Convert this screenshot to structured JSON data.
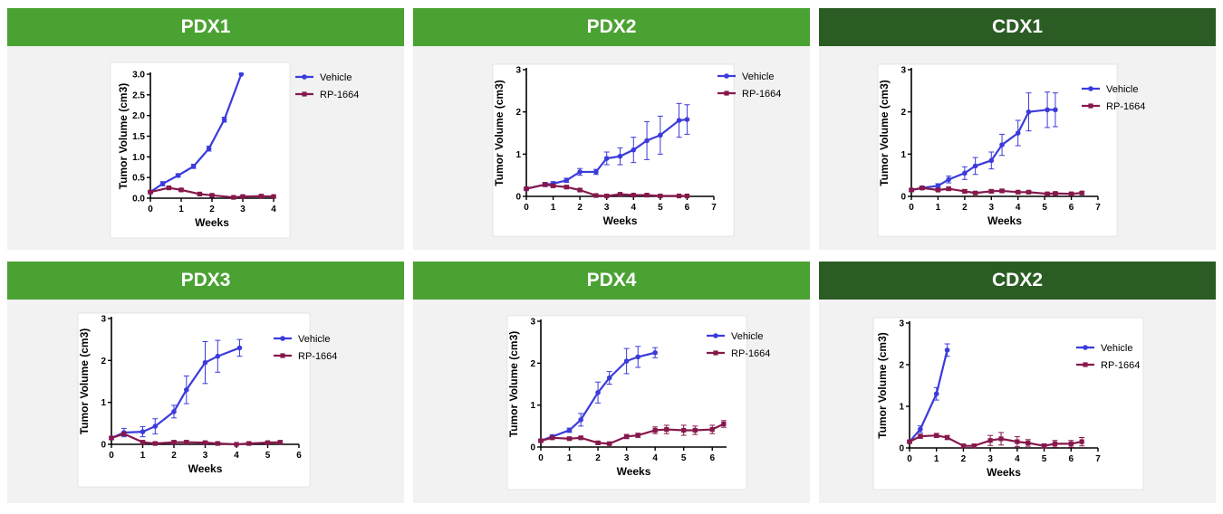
{
  "colors": {
    "header_light": "#4aa232",
    "header_dark": "#2a5c24",
    "vehicle": "#3b3bdc",
    "rp": "#86184c"
  },
  "chart_data": [
    {
      "id": "pdx1",
      "title": "PDX1",
      "type": "line",
      "header": "light",
      "xlabel": "Weeks",
      "ylabel": "Tumor Volume (cm3)",
      "xlim": [
        0,
        4
      ],
      "ylim": [
        0,
        3
      ],
      "xticks": [
        "0",
        "1",
        "2",
        "3",
        "4"
      ],
      "yticks": [
        "0.0",
        "0.5",
        "1.0",
        "1.5",
        "2.0",
        "2.5",
        "3.0"
      ],
      "series": [
        {
          "name": "Vehicle",
          "color": "vehicle",
          "marker": "circle",
          "x": [
            0,
            0.4,
            0.9,
            1.4,
            1.9,
            2.4,
            2.95
          ],
          "y": [
            0.15,
            0.35,
            0.55,
            0.77,
            1.2,
            1.9,
            3.0
          ],
          "err": [
            0.03,
            0.05,
            0.04,
            0.05,
            0.06,
            0.06,
            0
          ]
        },
        {
          "name": "RP-1664",
          "color": "rp",
          "marker": "square",
          "x": [
            0,
            0.6,
            1.0,
            1.6,
            2.0,
            2.7,
            3.0,
            3.6,
            4.0
          ],
          "y": [
            0.15,
            0.25,
            0.2,
            0.1,
            0.07,
            0.02,
            0.04,
            0.05,
            0.04
          ],
          "err": [
            0.02,
            0.03,
            0.03,
            0.02,
            0.02,
            0.02,
            0.02,
            0.02,
            0.02
          ]
        }
      ]
    },
    {
      "id": "pdx2",
      "title": "PDX2",
      "type": "line",
      "header": "light",
      "xlabel": "Weeks",
      "ylabel": "Tumor Volume (cm3)",
      "xlim": [
        0,
        7
      ],
      "ylim": [
        0,
        3
      ],
      "xticks": [
        "0",
        "1",
        "2",
        "3",
        "4",
        "5",
        "6",
        "7"
      ],
      "yticks": [
        "0",
        "1",
        "2",
        "3"
      ],
      "series": [
        {
          "name": "Vehicle",
          "color": "vehicle",
          "marker": "circle",
          "x": [
            0,
            0.7,
            1,
            1.5,
            2,
            2.6,
            3,
            3.5,
            4,
            4.5,
            5,
            5.7,
            6
          ],
          "y": [
            0.18,
            0.28,
            0.3,
            0.38,
            0.58,
            0.58,
            0.9,
            0.95,
            1.1,
            1.32,
            1.45,
            1.8,
            1.82
          ],
          "err": [
            0.03,
            0.05,
            0.05,
            0.05,
            0.08,
            0.06,
            0.15,
            0.2,
            0.3,
            0.45,
            0.45,
            0.4,
            0.35
          ]
        },
        {
          "name": "RP-1664",
          "color": "rp",
          "marker": "square",
          "x": [
            0,
            0.7,
            1,
            1.5,
            2,
            2.6,
            3,
            3.5,
            4,
            4.5,
            5,
            5.7,
            6
          ],
          "y": [
            0.18,
            0.28,
            0.25,
            0.22,
            0.15,
            0.02,
            0.01,
            0.05,
            0.03,
            0.03,
            0.01,
            0.01,
            0.01
          ],
          "err": [
            0.02,
            0.03,
            0.03,
            0.03,
            0.03,
            0.02,
            0.02,
            0.02,
            0.02,
            0.02,
            0.02,
            0.02,
            0.02
          ]
        }
      ]
    },
    {
      "id": "cdx1",
      "title": "CDX1",
      "type": "line",
      "header": "dark",
      "xlabel": "Weeks",
      "ylabel": "Tumor Volume (cm3)",
      "xlim": [
        0,
        7
      ],
      "ylim": [
        0,
        3
      ],
      "xticks": [
        "0",
        "1",
        "2",
        "3",
        "4",
        "5",
        "6",
        "7"
      ],
      "yticks": [
        "0",
        "1",
        "2",
        "3"
      ],
      "series": [
        {
          "name": "Vehicle",
          "color": "vehicle",
          "marker": "circle",
          "x": [
            0,
            0.4,
            1,
            1.4,
            2,
            2.4,
            3,
            3.4,
            4,
            4.4,
            5.1,
            5.4
          ],
          "y": [
            0.15,
            0.2,
            0.25,
            0.4,
            0.55,
            0.72,
            0.85,
            1.22,
            1.5,
            2.0,
            2.05,
            2.05
          ],
          "err": [
            0.03,
            0.04,
            0.05,
            0.08,
            0.15,
            0.2,
            0.2,
            0.25,
            0.3,
            0.45,
            0.42,
            0.4
          ]
        },
        {
          "name": "RP-1664",
          "color": "rp",
          "marker": "square",
          "x": [
            0,
            0.4,
            1,
            1.4,
            2,
            2.4,
            3,
            3.4,
            4,
            4.4,
            5.1,
            5.4,
            6,
            6.4
          ],
          "y": [
            0.15,
            0.2,
            0.15,
            0.18,
            0.12,
            0.08,
            0.12,
            0.13,
            0.1,
            0.1,
            0.06,
            0.07,
            0.06,
            0.08
          ],
          "err": [
            0.03,
            0.03,
            0.03,
            0.04,
            0.04,
            0.03,
            0.04,
            0.04,
            0.03,
            0.03,
            0.03,
            0.03,
            0.03,
            0.03
          ]
        }
      ]
    },
    {
      "id": "pdx3",
      "title": "PDX3",
      "type": "line",
      "header": "light",
      "xlabel": "Weeks",
      "ylabel": "Tumor Volume (cm3)",
      "xlim": [
        0,
        6
      ],
      "ylim": [
        0,
        3
      ],
      "xticks": [
        "0",
        "1",
        "2",
        "3",
        "4",
        "5",
        "6"
      ],
      "yticks": [
        "0",
        "1",
        "2",
        "3"
      ],
      "series": [
        {
          "name": "Vehicle",
          "color": "vehicle",
          "marker": "circle",
          "x": [
            0,
            0.4,
            1,
            1.4,
            2,
            2.4,
            3,
            3.4,
            4.1
          ],
          "y": [
            0.15,
            0.28,
            0.3,
            0.43,
            0.78,
            1.3,
            1.95,
            2.1,
            2.3
          ],
          "err": [
            0.03,
            0.1,
            0.12,
            0.18,
            0.15,
            0.33,
            0.5,
            0.38,
            0.2
          ]
        },
        {
          "name": "RP-1664",
          "color": "rp",
          "marker": "square",
          "x": [
            0,
            0.4,
            1,
            1.4,
            2,
            2.4,
            3,
            3.4,
            4,
            4.4,
            5,
            5.4
          ],
          "y": [
            0.15,
            0.25,
            0.05,
            0.02,
            0.05,
            0.05,
            0.04,
            0.02,
            0.0,
            0.02,
            0.04,
            0.05
          ],
          "err": [
            0.03,
            0.04,
            0.03,
            0.03,
            0.04,
            0.04,
            0.03,
            0.03,
            0.02,
            0.03,
            0.03,
            0.03
          ]
        }
      ]
    },
    {
      "id": "pdx4",
      "title": "PDX4",
      "type": "line",
      "header": "light",
      "xlabel": "Weeks",
      "ylabel": "Tumor Volume (cm3)",
      "xlim": [
        0,
        6.5
      ],
      "ylim": [
        0,
        3
      ],
      "xticks": [
        "0",
        "1",
        "2",
        "3",
        "4",
        "5",
        "6"
      ],
      "yticks": [
        "0",
        "1",
        "2",
        "3"
      ],
      "series": [
        {
          "name": "Vehicle",
          "color": "vehicle",
          "marker": "circle",
          "x": [
            0,
            0.4,
            1,
            1.4,
            2,
            2.4,
            3,
            3.4,
            4
          ],
          "y": [
            0.15,
            0.25,
            0.4,
            0.65,
            1.3,
            1.65,
            2.05,
            2.15,
            2.25
          ],
          "err": [
            0.03,
            0.04,
            0.05,
            0.15,
            0.25,
            0.15,
            0.3,
            0.25,
            0.12
          ]
        },
        {
          "name": "RP-1664",
          "color": "rp",
          "marker": "square",
          "x": [
            0,
            0.4,
            1,
            1.4,
            2,
            2.4,
            3,
            3.4,
            4,
            4.4,
            5,
            5.4,
            6,
            6.4
          ],
          "y": [
            0.15,
            0.22,
            0.2,
            0.22,
            0.1,
            0.08,
            0.25,
            0.28,
            0.4,
            0.42,
            0.4,
            0.4,
            0.42,
            0.55
          ],
          "err": [
            0.02,
            0.03,
            0.03,
            0.03,
            0.03,
            0.03,
            0.05,
            0.05,
            0.08,
            0.1,
            0.12,
            0.1,
            0.1,
            0.08
          ]
        }
      ]
    },
    {
      "id": "cdx2",
      "title": "CDX2",
      "type": "line",
      "header": "dark",
      "xlabel": "Weeks",
      "ylabel": "Tumor Volume (cm3)",
      "xlim": [
        0,
        7
      ],
      "ylim": [
        0,
        3
      ],
      "xticks": [
        "0",
        "1",
        "2",
        "3",
        "4",
        "5",
        "6",
        "7"
      ],
      "yticks": [
        "0",
        "1",
        "2",
        "3"
      ],
      "series": [
        {
          "name": "Vehicle",
          "color": "vehicle",
          "marker": "circle",
          "x": [
            0,
            0.4,
            1,
            1.4
          ],
          "y": [
            0.15,
            0.45,
            1.3,
            2.35
          ],
          "err": [
            0.03,
            0.08,
            0.15,
            0.15
          ]
        },
        {
          "name": "RP-1664",
          "color": "rp",
          "marker": "square",
          "x": [
            0,
            0.4,
            1,
            1.4,
            2,
            2.4,
            3,
            3.4,
            4,
            4.4,
            5,
            5.4,
            6,
            6.4
          ],
          "y": [
            0.15,
            0.28,
            0.3,
            0.25,
            0.05,
            0.05,
            0.18,
            0.22,
            0.15,
            0.12,
            0.05,
            0.1,
            0.1,
            0.15
          ],
          "err": [
            0.03,
            0.05,
            0.05,
            0.05,
            0.04,
            0.04,
            0.12,
            0.15,
            0.12,
            0.08,
            0.05,
            0.08,
            0.08,
            0.1
          ]
        }
      ]
    }
  ]
}
